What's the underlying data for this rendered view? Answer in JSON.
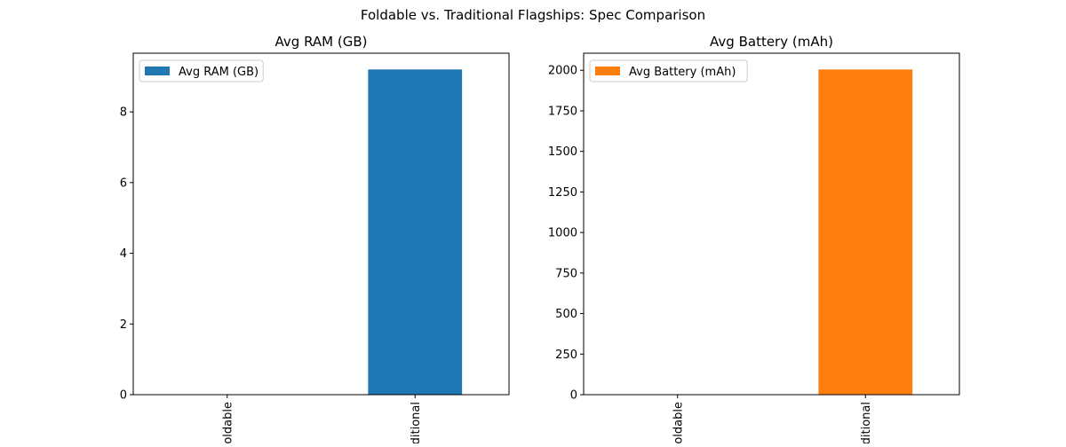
{
  "figure_title": "Foldable vs. Traditional Flagships: Spec Comparison",
  "chart_data": [
    {
      "type": "bar",
      "title": "Avg RAM (GB)",
      "categories": [
        "Foldable",
        "Traditional"
      ],
      "series": [
        {
          "name": "Avg RAM (GB)",
          "values": [
            0,
            9.2
          ],
          "color": "#1f77b4"
        }
      ],
      "ylim": [
        0,
        9.66
      ],
      "yticks": [
        0,
        2,
        4,
        6,
        8
      ],
      "legend": "top-left",
      "grid": false,
      "xlabel": "",
      "ylabel": ""
    },
    {
      "type": "bar",
      "title": "Avg Battery (mAh)",
      "categories": [
        "Foldable",
        "Traditional"
      ],
      "series": [
        {
          "name": "Avg Battery (mAh)",
          "values": [
            0,
            2005
          ],
          "color": "#ff7f0e"
        }
      ],
      "ylim": [
        0,
        2105.25
      ],
      "yticks": [
        0,
        250,
        500,
        750,
        1000,
        1250,
        1500,
        1750,
        2000
      ],
      "legend": "top-left",
      "grid": false,
      "xlabel": "",
      "ylabel": ""
    }
  ]
}
